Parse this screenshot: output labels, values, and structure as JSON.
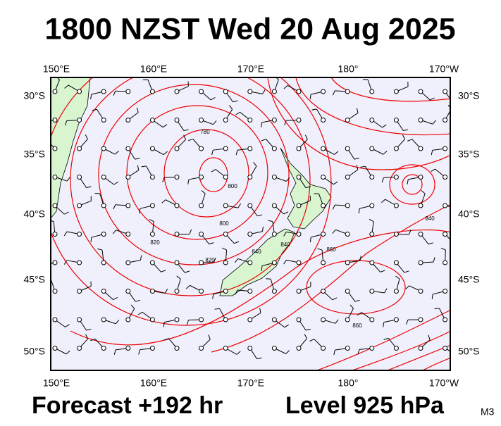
{
  "title": "1800 NZST Wed 20 Aug 2025",
  "footer": {
    "forecast": "Forecast +192 hr",
    "level": "Level 925 hPa",
    "model": "M3"
  },
  "axes": {
    "longitude_labels": [
      "150°E",
      "160°E",
      "170°E",
      "180°",
      "170°W"
    ],
    "latitude_labels": [
      "30°S",
      "35°S",
      "40°S",
      "45°S",
      "50°S"
    ]
  },
  "contour_labels": [
    "780",
    "800",
    "820",
    "840",
    "860",
    "860",
    "840",
    "800",
    "820",
    "840"
  ]
}
